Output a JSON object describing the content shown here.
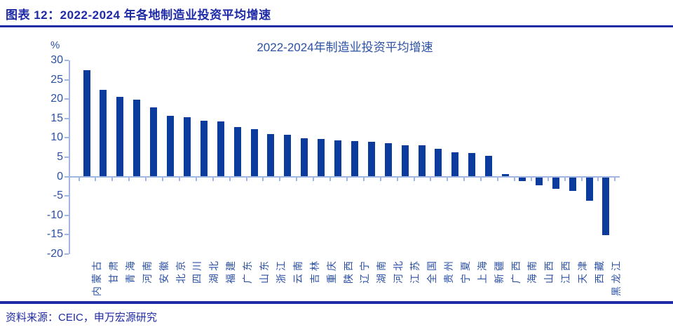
{
  "header": {
    "title": "图表 12：2022-2024 年各地制造业投资平均增速"
  },
  "footer": {
    "source": "资料来源：CEIC，申万宏源研究"
  },
  "chart_data": {
    "type": "bar",
    "title": "2022-2024年制造业投资平均增速",
    "unit_label": "%",
    "categories": [
      "内蒙古",
      "甘肃",
      "青海",
      "河南",
      "安徽",
      "北京",
      "四川",
      "湖北",
      "福建",
      "广东",
      "山东",
      "浙江",
      "云南",
      "吉林",
      "重庆",
      "陕西",
      "辽宁",
      "湖南",
      "河北",
      "江苏",
      "全国",
      "贵州",
      "宁夏",
      "上海",
      "新疆",
      "广西",
      "海南",
      "山西",
      "江西",
      "天津",
      "西藏",
      "黑龙江"
    ],
    "values": [
      27.4,
      22.4,
      20.5,
      19.8,
      17.8,
      15.7,
      15.3,
      14.4,
      14.2,
      12.8,
      12.3,
      11.0,
      10.7,
      9.8,
      9.7,
      9.3,
      9.2,
      9.0,
      8.6,
      8.1,
      8.0,
      7.2,
      6.2,
      6.0,
      5.3,
      0.7,
      -1.1,
      -2.2,
      -3.2,
      -3.7,
      -6.3,
      -15.2
    ],
    "ylim": [
      -20,
      30
    ],
    "yticks": [
      30,
      25,
      20,
      15,
      10,
      5,
      0,
      -5,
      -10,
      -15,
      -20
    ],
    "grid": false,
    "legend": "none",
    "colors": {
      "bar": "#0b3b9c",
      "axis": "#9fb7e2",
      "tick_label": "#2b50a5",
      "accent": "#1e2aa6"
    }
  }
}
